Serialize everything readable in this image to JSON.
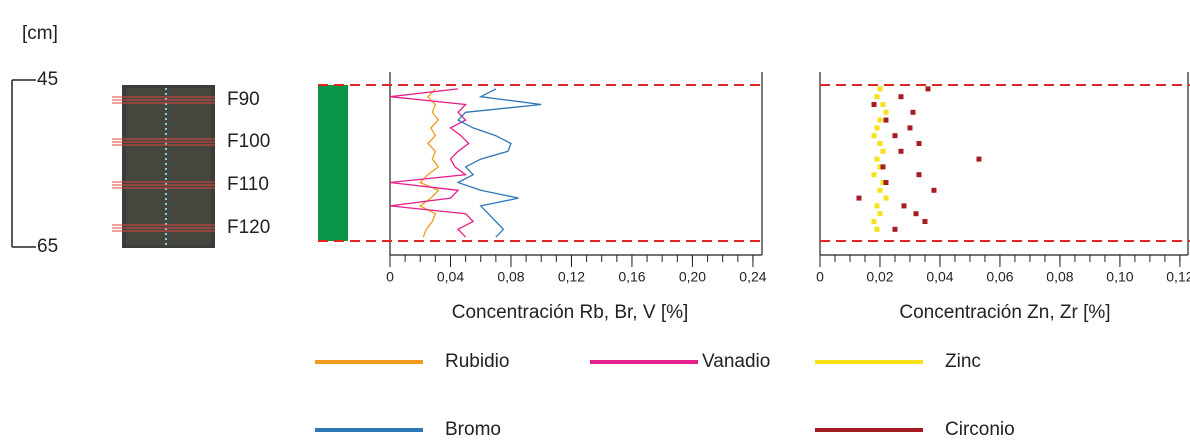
{
  "depth_axis": {
    "unit": "[cm]",
    "ticks": [
      45,
      65
    ]
  },
  "core_labels": [
    "F90",
    "F100",
    "F110",
    "F120"
  ],
  "chart_data": [
    {
      "type": "line",
      "xlabel": "Concentración Rb, Br, V [%]",
      "xlim": [
        0,
        0.246
      ],
      "ylim": [
        45,
        65
      ],
      "xminor": 0.01,
      "xticks": [
        0,
        {
          "value": 0.04,
          "label": "0,04"
        },
        {
          "value": 0.08,
          "label": "0,08"
        },
        {
          "value": 0.12,
          "label": "0,12"
        },
        {
          "value": 0.16,
          "label": "0,16"
        },
        {
          "value": 0.2,
          "label": "0,20"
        },
        {
          "value": 0.24,
          "label": "0,24"
        }
      ],
      "y": [
        45.5,
        46.5,
        47.5,
        48.5,
        49.5,
        50.5,
        51.5,
        52.5,
        53.5,
        54.5,
        55.5,
        56.5,
        57.5,
        58.5,
        59.5,
        60.5,
        61.5,
        62.5,
        63.5,
        64.5
      ],
      "series": [
        {
          "name": "Rubidio",
          "color": "#f29a1f",
          "values": [
            0.03,
            0.025,
            0.03,
            0.028,
            0.032,
            0.027,
            0.03,
            0.025,
            0.03,
            0.028,
            0.032,
            0.025,
            0.02,
            0.032,
            0.027,
            0.02,
            0.03,
            0.028,
            0.024,
            0.022
          ]
        },
        {
          "name": "Vanadio",
          "color": "#e5208b",
          "values": [
            0.045,
            0.0,
            0.05,
            0.045,
            0.05,
            0.04,
            0.047,
            0.052,
            0.045,
            0.04,
            0.043,
            0.05,
            0.0,
            0.045,
            0.04,
            0.0,
            0.05,
            0.055,
            0.045,
            0.05
          ]
        },
        {
          "name": "Bromo",
          "color": "#2e78b8",
          "values": [
            0.07,
            0.06,
            0.1,
            0.05,
            0.045,
            0.055,
            0.07,
            0.08,
            0.078,
            0.06,
            0.05,
            0.055,
            0.045,
            0.06,
            0.085,
            0.06,
            0.065,
            0.07,
            0.075,
            0.07
          ]
        }
      ]
    },
    {
      "type": "scatter",
      "xlabel": "Concentración Zn, Zr [%]",
      "xlim": [
        0,
        0.1227
      ],
      "ylim": [
        45,
        65
      ],
      "xminor": 0.005,
      "xticks": [
        0,
        {
          "value": 0.02,
          "label": "0,02"
        },
        {
          "value": 0.04,
          "label": "0,04"
        },
        {
          "value": 0.06,
          "label": "0,06"
        },
        {
          "value": 0.08,
          "label": "0,08"
        },
        {
          "value": 0.1,
          "label": "0,10"
        },
        {
          "value": 0.12,
          "label": "0,12"
        }
      ],
      "y": [
        45.5,
        46.5,
        47.5,
        48.5,
        49.5,
        50.5,
        51.5,
        52.5,
        53.5,
        54.5,
        55.5,
        56.5,
        57.5,
        58.5,
        59.5,
        60.5,
        61.5,
        62.5,
        63.5
      ],
      "series": [
        {
          "name": "Zinc",
          "color": "#f5e21a",
          "values": [
            0.02,
            0.019,
            0.021,
            0.022,
            0.02,
            0.019,
            0.018,
            0.02,
            0.021,
            0.019,
            0.02,
            0.018,
            0.021,
            0.02,
            0.022,
            0.019,
            0.02,
            0.018,
            0.019
          ]
        },
        {
          "name": "Circonio",
          "color": "#a41d22",
          "values": [
            0.036,
            0.027,
            0.018,
            0.031,
            0.022,
            0.03,
            0.025,
            0.033,
            0.027,
            0.053,
            0.021,
            0.033,
            0.022,
            0.038,
            0.013,
            0.028,
            0.032,
            0.035,
            0.025
          ]
        }
      ]
    }
  ]
}
